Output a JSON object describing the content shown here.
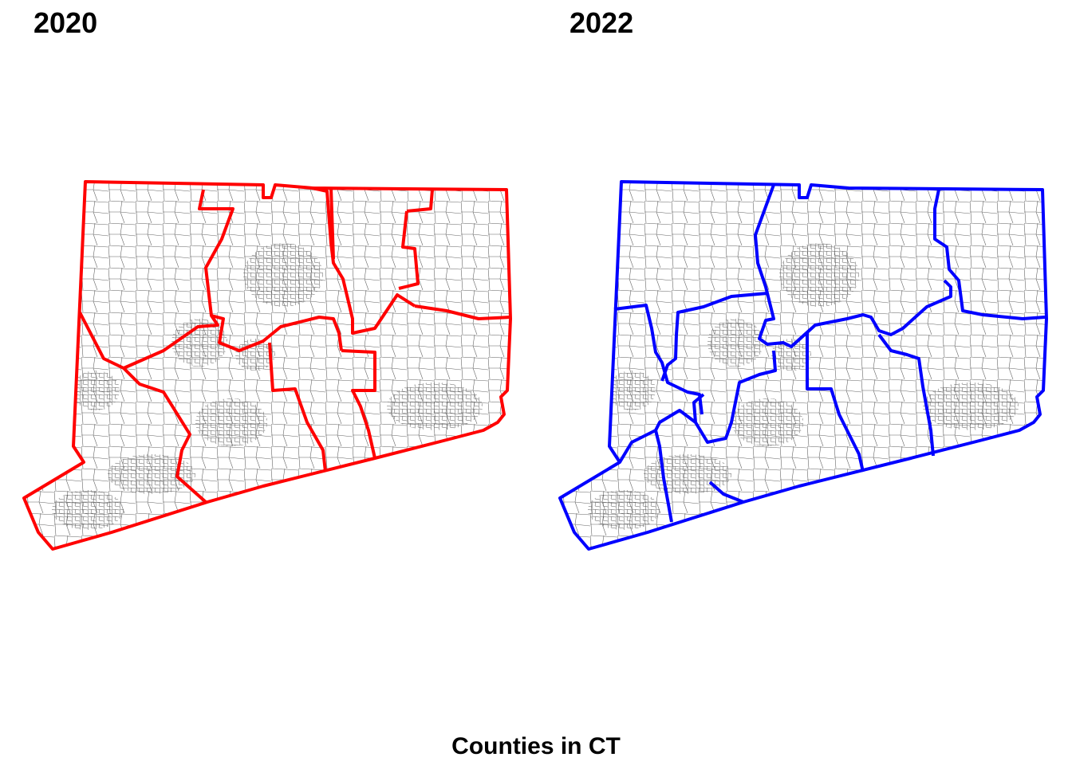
{
  "panels": [
    {
      "title": "2020",
      "boundary_color": "#ff0000",
      "legend": ""
    },
    {
      "title": "2022",
      "boundary_color": "#0000ff",
      "legend": ""
    }
  ],
  "caption": "Counties in CT"
}
